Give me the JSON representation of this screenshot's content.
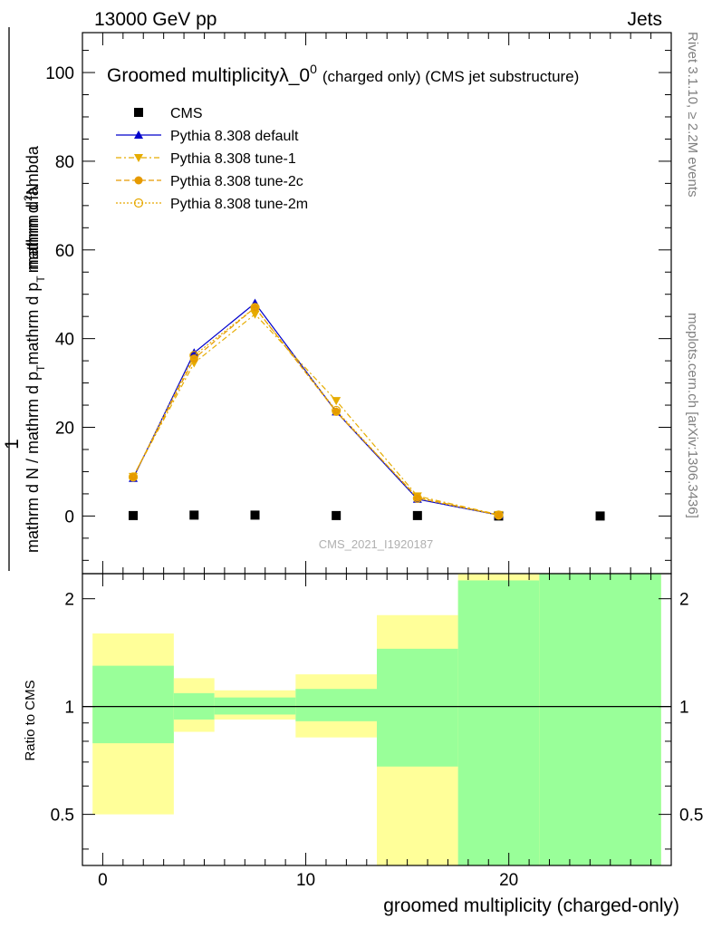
{
  "header": {
    "left": "13000 GeV pp",
    "right": "Jets"
  },
  "side_labels": {
    "rivet": "Rivet 3.1.10, ≥ 2.2M events",
    "mcplots": "mcplots.cern.ch [arXiv:1306.3436]"
  },
  "chart_data": [
    {
      "type": "line",
      "title_main": "Groomed multiplicityλ_0",
      "title_sup": "0",
      "title_tail": "(charged only) (CMS jet substructure)",
      "ylabel_top": "1",
      "ylabel_numerator_main": "mathrm d",
      "ylabel_numerator_sup": "2",
      "ylabel_numerator_tail": "N",
      "ylabel_denominator": "mathrm d N / mathrm d p_T mathrm d p_T mathrm d lambda",
      "ylabel_parts": [
        "mathrm d N / mathrm d p",
        "T",
        "mathrm d p",
        "T",
        "mathrm d lambda"
      ],
      "watermark": "CMS_2021_I1920187",
      "xlim": [
        -1,
        28
      ],
      "ylim": [
        -13,
        109
      ],
      "y_ticks": [
        0,
        20,
        40,
        60,
        80,
        100
      ],
      "y_tick_labels": [
        "0",
        "20",
        "40",
        "60",
        "80",
        "100"
      ],
      "legend_position": "top-left",
      "series": [
        {
          "name": "CMS",
          "color": "#000000",
          "marker": "square",
          "x": [
            1.5,
            4.5,
            7.5,
            11.5,
            15.5,
            19.5,
            24.5
          ],
          "y": [
            0.1,
            0.2,
            0.2,
            0.1,
            0.1,
            0.0,
            0.0
          ]
        },
        {
          "name": "Pythia 8.308 default",
          "color": "#0000cc",
          "marker": "triangle-up",
          "dash": "solid",
          "x": [
            1.5,
            4.5,
            7.5,
            11.5,
            15.5,
            19.5
          ],
          "y": [
            8.5,
            36.8,
            48.0,
            23.5,
            3.8,
            0.2
          ]
        },
        {
          "name": "Pythia 8.308 tune-1",
          "color": "#e6ac00",
          "marker": "triangle-down",
          "dash": "dashdot",
          "x": [
            1.5,
            4.5,
            7.5,
            11.5,
            15.5,
            19.5
          ],
          "y": [
            8.9,
            34.5,
            45.5,
            26.0,
            4.5,
            0.3
          ]
        },
        {
          "name": "Pythia 8.308 tune-2c",
          "color": "#e69a00",
          "marker": "circle",
          "dash": "dashed",
          "x": [
            1.5,
            4.5,
            7.5,
            11.5,
            15.5,
            19.5
          ],
          "y": [
            8.8,
            35.5,
            47.0,
            23.5,
            4.2,
            0.2
          ]
        },
        {
          "name": "Pythia 8.308 tune-2m",
          "color": "#e6a800",
          "marker": "circle-open",
          "dash": "dotted",
          "x": [
            1.5,
            4.5,
            7.5,
            11.5,
            15.5,
            19.5
          ],
          "y": [
            8.8,
            36.2,
            47.0,
            23.8,
            4.0,
            0.2
          ]
        }
      ]
    },
    {
      "type": "area",
      "ylabel": "Ratio to CMS",
      "xlabel": "groomed multiplicity (charged-only)",
      "xlim": [
        -1,
        28
      ],
      "ylim": [
        0.36,
        2.35
      ],
      "y_scale": "log",
      "y_ticks": [
        0.5,
        1,
        2
      ],
      "y_tick_labels": [
        "0.5",
        "1",
        "2"
      ],
      "x_ticks": [
        0,
        10,
        20
      ],
      "x_tick_labels": [
        "0",
        "10",
        "20"
      ],
      "reference_line": 1,
      "bins": [
        {
          "x_low": -0.5,
          "x_high": 3.5,
          "yellow": [
            0.5,
            1.6
          ],
          "green": [
            0.79,
            1.3
          ]
        },
        {
          "x_low": 3.5,
          "x_high": 5.5,
          "yellow": [
            0.85,
            1.2
          ],
          "green": [
            0.92,
            1.09
          ]
        },
        {
          "x_low": 5.5,
          "x_high": 9.5,
          "yellow": [
            0.92,
            1.11
          ],
          "green": [
            0.95,
            1.06
          ]
        },
        {
          "x_low": 9.5,
          "x_high": 13.5,
          "yellow": [
            0.82,
            1.23
          ],
          "green": [
            0.91,
            1.12
          ]
        },
        {
          "x_low": 13.5,
          "x_high": 17.5,
          "yellow": [
            0.36,
            1.8
          ],
          "green": [
            0.68,
            1.45
          ]
        },
        {
          "x_low": 17.5,
          "x_high": 21.5,
          "yellow": [
            0.36,
            2.35
          ],
          "green": [
            0.36,
            2.25
          ]
        },
        {
          "x_low": 21.5,
          "x_high": 27.5,
          "yellow": [
            0.36,
            2.35
          ],
          "green": [
            0.36,
            2.35
          ]
        }
      ],
      "colors": {
        "yellow": "#ffff99",
        "green": "#99ff99"
      }
    }
  ]
}
